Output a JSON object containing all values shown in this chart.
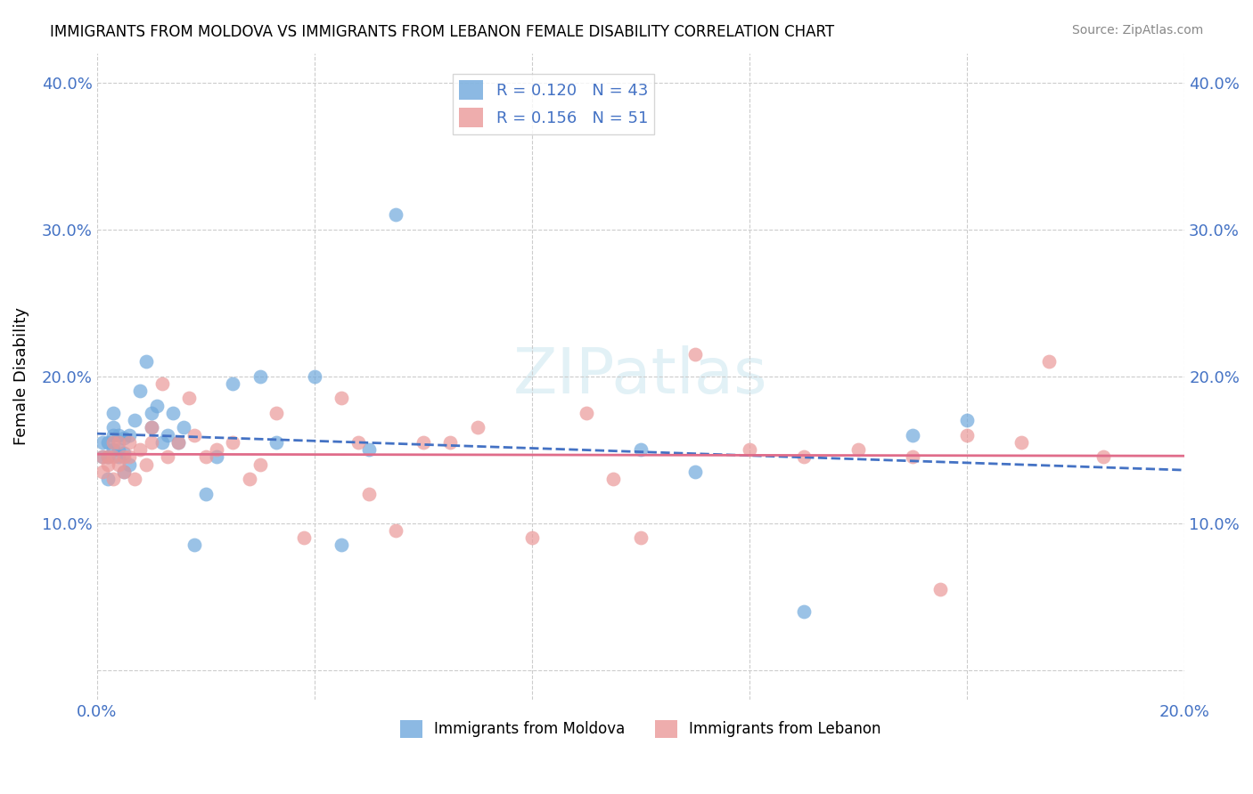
{
  "title": "IMMIGRANTS FROM MOLDOVA VS IMMIGRANTS FROM LEBANON FEMALE DISABILITY CORRELATION CHART",
  "source": "Source: ZipAtlas.com",
  "ylabel": "Female Disability",
  "xlim": [
    0.0,
    0.2
  ],
  "ylim": [
    -0.02,
    0.42
  ],
  "yticks": [
    0.0,
    0.1,
    0.2,
    0.3,
    0.4
  ],
  "xticks": [
    0.0,
    0.04,
    0.08,
    0.12,
    0.16,
    0.2
  ],
  "moldova_color": "#6fa8dc",
  "lebanon_color": "#ea9999",
  "moldova_R": 0.12,
  "moldova_N": 43,
  "lebanon_R": 0.156,
  "lebanon_N": 51,
  "moldova_x": [
    0.001,
    0.001,
    0.002,
    0.002,
    0.002,
    0.003,
    0.003,
    0.003,
    0.003,
    0.004,
    0.004,
    0.004,
    0.005,
    0.005,
    0.005,
    0.006,
    0.006,
    0.007,
    0.008,
    0.009,
    0.01,
    0.01,
    0.011,
    0.012,
    0.013,
    0.014,
    0.015,
    0.016,
    0.018,
    0.02,
    0.022,
    0.025,
    0.03,
    0.033,
    0.04,
    0.045,
    0.05,
    0.055,
    0.1,
    0.11,
    0.13,
    0.15,
    0.16
  ],
  "moldova_y": [
    0.145,
    0.155,
    0.13,
    0.145,
    0.155,
    0.15,
    0.16,
    0.165,
    0.175,
    0.145,
    0.15,
    0.16,
    0.135,
    0.148,
    0.158,
    0.14,
    0.16,
    0.17,
    0.19,
    0.21,
    0.165,
    0.175,
    0.18,
    0.155,
    0.16,
    0.175,
    0.155,
    0.165,
    0.085,
    0.12,
    0.145,
    0.195,
    0.2,
    0.155,
    0.2,
    0.085,
    0.15,
    0.31,
    0.15,
    0.135,
    0.04,
    0.16,
    0.17
  ],
  "lebanon_x": [
    0.001,
    0.001,
    0.002,
    0.002,
    0.003,
    0.003,
    0.003,
    0.004,
    0.004,
    0.005,
    0.005,
    0.006,
    0.006,
    0.007,
    0.008,
    0.009,
    0.01,
    0.01,
    0.012,
    0.013,
    0.015,
    0.017,
    0.018,
    0.02,
    0.022,
    0.025,
    0.028,
    0.03,
    0.033,
    0.038,
    0.045,
    0.048,
    0.05,
    0.055,
    0.06,
    0.065,
    0.07,
    0.08,
    0.09,
    0.095,
    0.1,
    0.11,
    0.12,
    0.13,
    0.14,
    0.15,
    0.155,
    0.16,
    0.17,
    0.175,
    0.185
  ],
  "lebanon_y": [
    0.135,
    0.145,
    0.14,
    0.145,
    0.13,
    0.145,
    0.155,
    0.14,
    0.155,
    0.135,
    0.145,
    0.155,
    0.145,
    0.13,
    0.15,
    0.14,
    0.155,
    0.165,
    0.195,
    0.145,
    0.155,
    0.185,
    0.16,
    0.145,
    0.15,
    0.155,
    0.13,
    0.14,
    0.175,
    0.09,
    0.185,
    0.155,
    0.12,
    0.095,
    0.155,
    0.155,
    0.165,
    0.09,
    0.175,
    0.13,
    0.09,
    0.215,
    0.15,
    0.145,
    0.15,
    0.145,
    0.055,
    0.16,
    0.155,
    0.21,
    0.145
  ],
  "background_color": "#ffffff",
  "grid_color": "#cccccc",
  "tick_color": "#4472c4",
  "moldova_line_color": "#4472c4",
  "lebanon_line_color": "#e06c8a"
}
